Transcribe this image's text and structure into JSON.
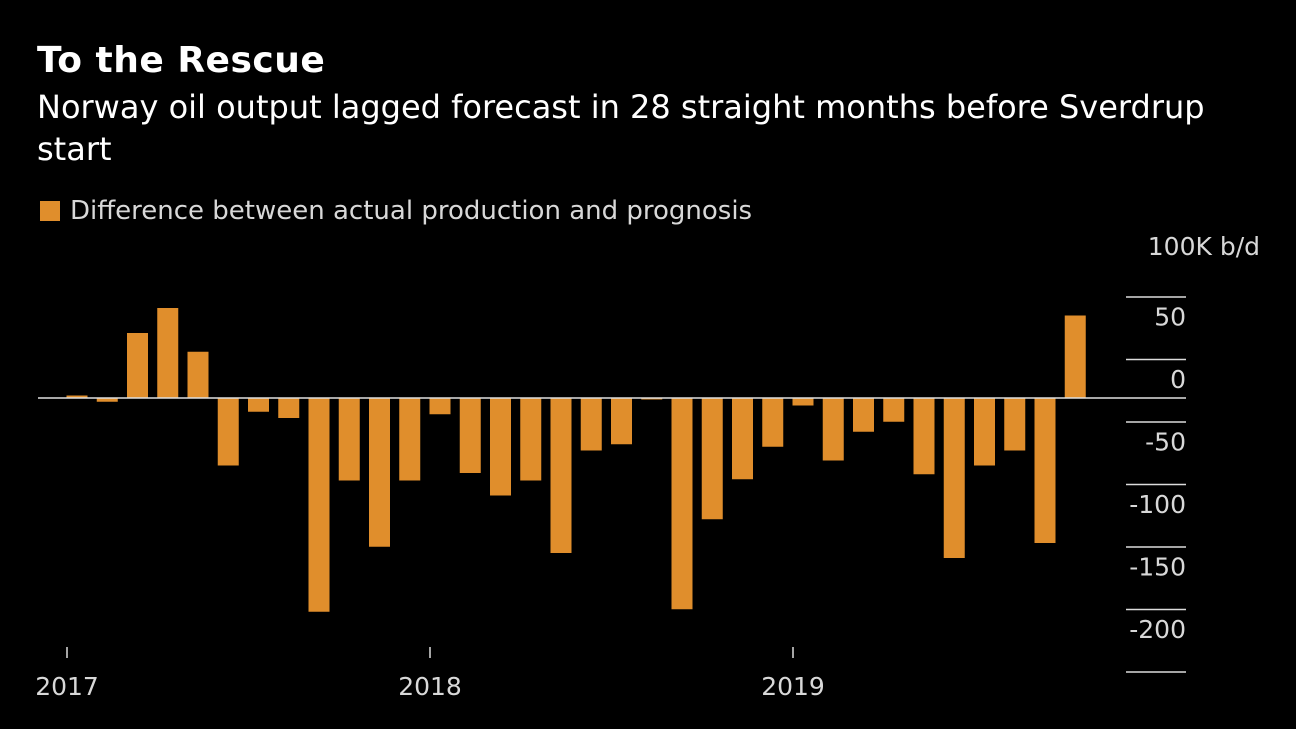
{
  "title": "To the Rescue",
  "subtitle": "Norway oil output lagged forecast in 28 straight months before Sverdrup start",
  "legend": {
    "label": "Difference between actual production and prognosis",
    "color": "#e08e2c"
  },
  "chart_data": {
    "type": "bar",
    "series": [
      {
        "name": "Difference between actual production and prognosis",
        "values": [
          2,
          -3,
          52,
          72,
          37,
          -54,
          -11,
          -16,
          -171,
          -66,
          -119,
          -66,
          -13,
          -60,
          -78,
          -66,
          -124,
          -42,
          -37,
          -1,
          -169,
          -97,
          -65,
          -39,
          -6,
          -50,
          -27,
          -19,
          -61,
          -128,
          -54,
          -42,
          -116,
          66
        ]
      }
    ],
    "categories": [
      "Jan 2017",
      "Feb 2017",
      "Mar 2017",
      "Apr 2017",
      "May 2017",
      "Jun 2017",
      "Jul 2017",
      "Aug 2017",
      "Sep 2017",
      "Oct 2017",
      "Nov 2017",
      "Dec 2017",
      "Jan 2018",
      "Feb 2018",
      "Mar 2018",
      "Apr 2018",
      "May 2018",
      "Jun 2018",
      "Jul 2018",
      "Aug 2018",
      "Sep 2018",
      "Oct 2018",
      "Nov 2018",
      "Dec 2018",
      "Jan 2019",
      "Feb 2019",
      "Mar 2019",
      "Apr 2019",
      "May 2019",
      "Jun 2019",
      "Jul 2019",
      "Aug 2019",
      "Sep 2019",
      "Oct 2019"
    ],
    "x_tick_labels": [
      "2017",
      "2018",
      "2019"
    ],
    "y_ticks": [
      100,
      50,
      0,
      -50,
      -100,
      -150,
      -200
    ],
    "y_tick_labels": [
      "100K b/d",
      "50",
      "0",
      "-50",
      "-100",
      "-150",
      "-200"
    ],
    "ylim": [
      -200,
      100
    ],
    "bar_color": "#e08e2c"
  }
}
